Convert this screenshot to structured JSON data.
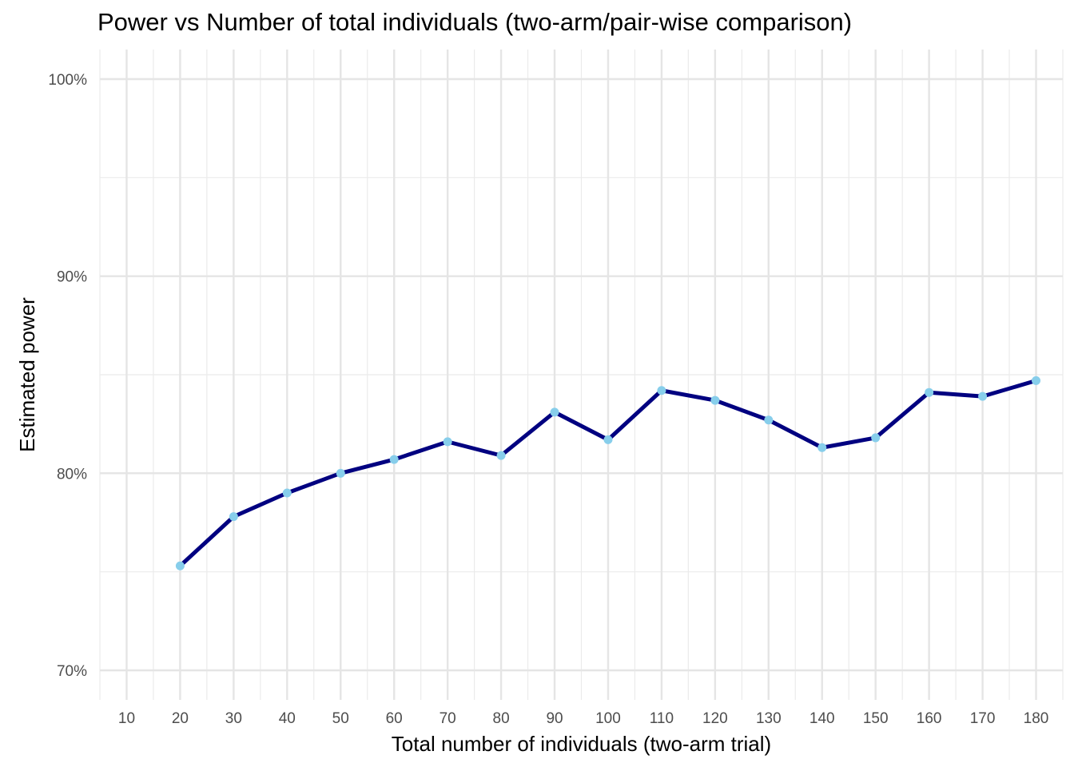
{
  "chart_data": {
    "type": "line",
    "title": "Power vs Number of total individuals (two-arm/pair-wise comparison)",
    "xlabel": "Total number of individuals (two-arm trial)",
    "ylabel": "Estimated power",
    "x_ticks": [
      10,
      20,
      30,
      40,
      50,
      60,
      70,
      80,
      90,
      100,
      110,
      120,
      130,
      140,
      150,
      160,
      170,
      180
    ],
    "y_ticks": [
      0.7,
      0.8,
      0.9,
      1.0
    ],
    "y_tick_labels": [
      "70%",
      "80%",
      "90%",
      "100%"
    ],
    "xlim": [
      5,
      185
    ],
    "ylim": [
      0.685,
      1.015
    ],
    "grid": true,
    "series": [
      {
        "x": [
          20,
          30,
          40,
          50,
          60,
          70,
          80,
          90,
          100,
          110,
          120,
          130,
          140,
          150,
          160,
          170,
          180
        ],
        "y": [
          0.753,
          0.778,
          0.79,
          0.8,
          0.807,
          0.816,
          0.809,
          0.831,
          0.817,
          0.842,
          0.837,
          0.827,
          0.813,
          0.818,
          0.841,
          0.839,
          0.847
        ],
        "line_color": "#000080",
        "point_color": "#87CEEB"
      }
    ]
  }
}
